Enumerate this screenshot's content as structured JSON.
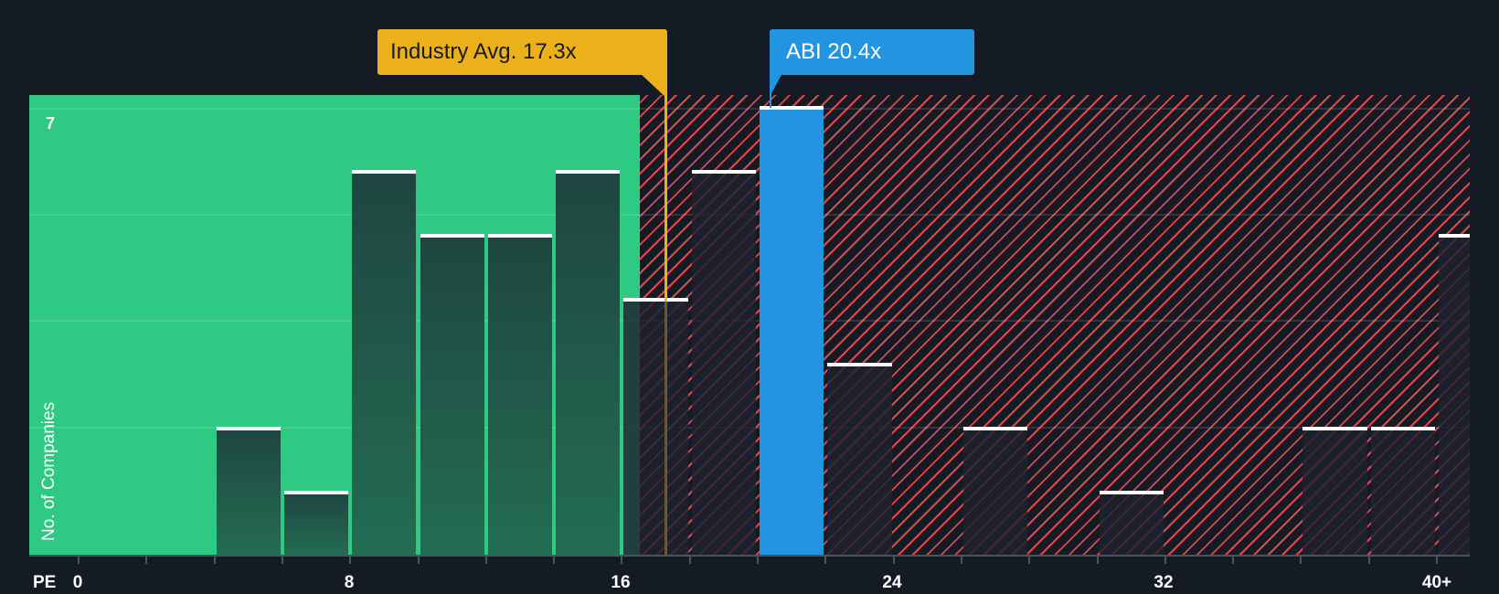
{
  "chart_data": {
    "type": "bar",
    "title": "",
    "xlabel": "PE",
    "ylabel": "No. of Companies",
    "x_tick_labels": [
      "0",
      "8",
      "16",
      "24",
      "32",
      "40+"
    ],
    "y_tick_labels": [
      "7"
    ],
    "ylim": [
      0,
      7
    ],
    "bin_width": 2,
    "categories": [
      "0-2",
      "2-4",
      "4-6",
      "6-8",
      "8-10",
      "10-12",
      "12-14",
      "14-16",
      "16-18",
      "18-20",
      "20-22",
      "22-24",
      "24-26",
      "26-28",
      "28-30",
      "30-32",
      "32-34",
      "34-36",
      "36-38",
      "38-40",
      "40+"
    ],
    "values": [
      0,
      0,
      2,
      1,
      6,
      5,
      5,
      6,
      4,
      6,
      7,
      3,
      0,
      2,
      0,
      1,
      0,
      0,
      2,
      2,
      5
    ],
    "highlight": {
      "category": "20-22",
      "label": "ABI",
      "value": 20.4
    },
    "industry_average": 17.3,
    "zones": [
      {
        "name": "undervalued",
        "from": 0,
        "to": 16.6,
        "color": "#2ec982"
      },
      {
        "name": "overvalued",
        "from": 16.6,
        "to": 41,
        "color": "#e0474c"
      }
    ],
    "grid": true
  },
  "callouts": {
    "industry": "Industry Avg. 17.3x",
    "company": "ABI 20.4x"
  },
  "axis": {
    "x_title": "PE",
    "y_title": "No. of Companies",
    "y_max_label": "7",
    "x_ticks": [
      "0",
      "8",
      "16",
      "24",
      "32",
      "40+"
    ]
  },
  "colors": {
    "background": "#151b24",
    "green_zone": "#2ec982",
    "red_hatch": "#e0474c",
    "highlight_bar": "#2394e0",
    "industry_avg": "#ecb11a"
  }
}
